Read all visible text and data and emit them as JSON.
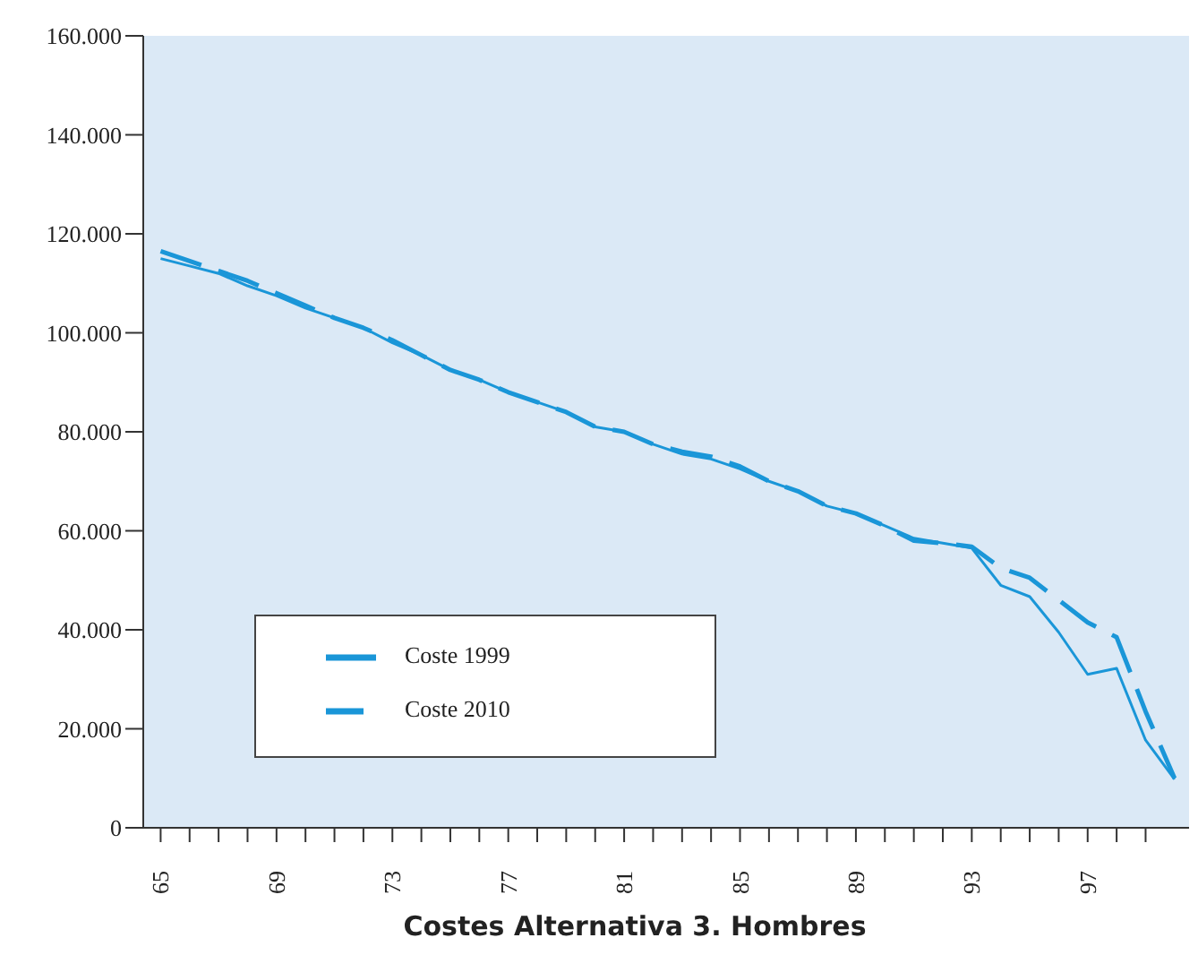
{
  "chart_data": {
    "type": "line",
    "title": "Costes Alternativa 3. Hombres",
    "x": [
      65,
      66,
      67,
      68,
      69,
      70,
      71,
      72,
      73,
      74,
      75,
      76,
      77,
      78,
      79,
      80,
      81,
      82,
      83,
      84,
      85,
      86,
      87,
      88,
      89,
      90,
      91,
      92,
      93,
      94,
      95,
      96,
      97,
      98,
      99,
      100
    ],
    "series": [
      {
        "name": "Coste 1999",
        "color": "#1a96d8",
        "line_style": "solid",
        "values": [
          115000,
          113500,
          112000,
          109500,
          107500,
          105000,
          103000,
          101000,
          98000,
          95500,
          92500,
          90500,
          88000,
          86000,
          84000,
          81000,
          80000,
          77500,
          75500,
          74500,
          72500,
          70000,
          68000,
          65000,
          63500,
          61000,
          58500,
          57500,
          56500,
          49000,
          46700,
          39500,
          31000,
          32200,
          17700,
          9800
        ]
      },
      {
        "name": "Coste 2010",
        "color": "#1a96d8",
        "line_style": "dashed",
        "values": [
          116500,
          114500,
          112500,
          110500,
          108000,
          105500,
          103000,
          101000,
          98500,
          95500,
          92500,
          90500,
          88000,
          86000,
          84000,
          81000,
          80000,
          77500,
          76000,
          75000,
          73000,
          70000,
          68000,
          65000,
          63500,
          61000,
          58000,
          57500,
          56800,
          52500,
          50500,
          46000,
          41500,
          38500,
          23500,
          10000
        ]
      }
    ],
    "xlim": [
      64.4,
      100.5
    ],
    "xticks": [
      65,
      {
        "value": 66,
        "label": null
      },
      {
        "value": 67,
        "label": null
      },
      {
        "value": 68,
        "label": null
      },
      69,
      {
        "value": 70,
        "label": null
      },
      {
        "value": 71,
        "label": null
      },
      {
        "value": 72,
        "label": null
      },
      73,
      {
        "value": 74,
        "label": null
      },
      {
        "value": 75,
        "label": null
      },
      {
        "value": 76,
        "label": null
      },
      77,
      {
        "value": 78,
        "label": null
      },
      {
        "value": 79,
        "label": null
      },
      {
        "value": 80,
        "label": null
      },
      81,
      {
        "value": 82,
        "label": null
      },
      {
        "value": 83,
        "label": null
      },
      {
        "value": 84,
        "label": null
      },
      85,
      {
        "value": 86,
        "label": null
      },
      {
        "value": 87,
        "label": null
      },
      {
        "value": 88,
        "label": null
      },
      89,
      {
        "value": 90,
        "label": null
      },
      {
        "value": 91,
        "label": null
      },
      {
        "value": 92,
        "label": null
      },
      93,
      {
        "value": 94,
        "label": null
      },
      {
        "value": 95,
        "label": null
      },
      {
        "value": 96,
        "label": null
      },
      97,
      {
        "value": 98,
        "label": null
      },
      {
        "value": 99,
        "label": null
      }
    ],
    "ylim": [
      0,
      160000
    ],
    "yticks": [
      0,
      {
        "value": 20000,
        "label": "20.000"
      },
      {
        "value": 40000,
        "label": "40.000"
      },
      {
        "value": 60000,
        "label": "60.000"
      },
      {
        "value": 80000,
        "label": "80.000"
      },
      {
        "value": 100000,
        "label": "100.000"
      },
      {
        "value": 120000,
        "label": "120.000"
      },
      {
        "value": 140000,
        "label": "140.000"
      },
      {
        "value": 160000,
        "label": "160.000"
      }
    ],
    "legend": "bottom left",
    "grid": false,
    "marker": "none"
  }
}
